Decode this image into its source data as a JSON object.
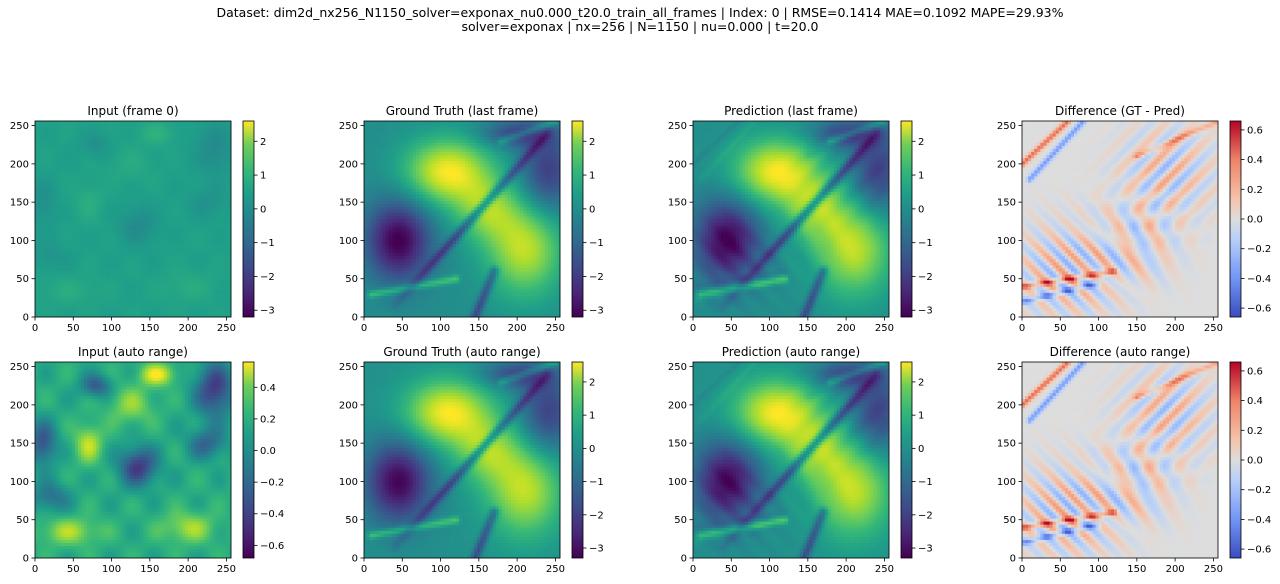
{
  "figure": {
    "title_line1": "Dataset: dim2d_nx256_N1150_solver=exponax_nu0.000_t20.0_train_all_frames | Index: 0 | RMSE=0.1414  MAE=0.1092  MAPE=29.93%",
    "title_line2": "solver=exponax | nx=256 | N=1150 | nu=0.000 | t=20.0"
  },
  "chart_data": [
    {
      "type": "heatmap",
      "title": "Input (frame 0)",
      "colormap": "viridis",
      "field": "input",
      "xlim": [
        0,
        256
      ],
      "ylim": [
        0,
        256
      ],
      "xticks": [
        0,
        50,
        100,
        150,
        200,
        250
      ],
      "yticks": [
        0,
        50,
        100,
        150,
        200,
        250
      ],
      "clim": [
        -3.2,
        2.6
      ],
      "cbar_ticks": [
        2,
        1,
        0,
        -1,
        -2,
        -3
      ],
      "cbar_labels": [
        "2",
        "1",
        "0",
        "−1",
        "−2",
        "−3"
      ]
    },
    {
      "type": "heatmap",
      "title": "Ground Truth (last frame)",
      "colormap": "viridis",
      "field": "truth",
      "xlim": [
        0,
        256
      ],
      "ylim": [
        0,
        256
      ],
      "xticks": [
        0,
        50,
        100,
        150,
        200,
        250
      ],
      "yticks": [
        0,
        50,
        100,
        150,
        200,
        250
      ],
      "clim": [
        -3.2,
        2.6
      ],
      "cbar_ticks": [
        2,
        1,
        0,
        -1,
        -2,
        -3
      ],
      "cbar_labels": [
        "2",
        "1",
        "0",
        "−1",
        "−2",
        "−3"
      ]
    },
    {
      "type": "heatmap",
      "title": "Prediction (last frame)",
      "colormap": "viridis",
      "field": "prediction",
      "xlim": [
        0,
        256
      ],
      "ylim": [
        0,
        256
      ],
      "xticks": [
        0,
        50,
        100,
        150,
        200,
        250
      ],
      "yticks": [
        0,
        50,
        100,
        150,
        200,
        250
      ],
      "clim": [
        -3.2,
        2.6
      ],
      "cbar_ticks": [
        2,
        1,
        0,
        -1,
        -2,
        -3
      ],
      "cbar_labels": [
        "2",
        "1",
        "0",
        "−1",
        "−2",
        "−3"
      ]
    },
    {
      "type": "heatmap",
      "title": "Difference (GT - Pred)",
      "colormap": "coolwarm",
      "field": "difference",
      "xlim": [
        0,
        256
      ],
      "ylim": [
        0,
        256
      ],
      "xticks": [
        0,
        50,
        100,
        150,
        200,
        250
      ],
      "yticks": [
        0,
        50,
        100,
        150,
        200,
        250
      ],
      "clim": [
        -0.66,
        0.66
      ],
      "cbar_ticks": [
        0.6,
        0.4,
        0.2,
        0.0,
        -0.2,
        -0.4,
        -0.6
      ],
      "cbar_labels": [
        "0.6",
        "0.4",
        "0.2",
        "0.0",
        "−0.2",
        "−0.4",
        "−0.6"
      ]
    },
    {
      "type": "heatmap",
      "title": "Input (auto range)",
      "colormap": "viridis",
      "field": "input_auto",
      "xlim": [
        0,
        256
      ],
      "ylim": [
        0,
        256
      ],
      "xticks": [
        0,
        50,
        100,
        150,
        200,
        250
      ],
      "yticks": [
        0,
        50,
        100,
        150,
        200,
        250
      ],
      "clim": [
        -0.68,
        0.56
      ],
      "cbar_ticks": [
        0.4,
        0.2,
        0.0,
        -0.2,
        -0.4,
        -0.6
      ],
      "cbar_labels": [
        "0.4",
        "0.2",
        "0.0",
        "−0.2",
        "−0.4",
        "−0.6"
      ]
    },
    {
      "type": "heatmap",
      "title": "Ground Truth (auto range)",
      "colormap": "viridis",
      "field": "truth",
      "xlim": [
        0,
        256
      ],
      "ylim": [
        0,
        256
      ],
      "xticks": [
        0,
        50,
        100,
        150,
        200,
        250
      ],
      "yticks": [
        0,
        50,
        100,
        150,
        200,
        250
      ],
      "clim": [
        -3.3,
        2.6
      ],
      "cbar_ticks": [
        2,
        1,
        0,
        -1,
        -2,
        -3
      ],
      "cbar_labels": [
        "2",
        "1",
        "0",
        "−1",
        "−2",
        "−3"
      ]
    },
    {
      "type": "heatmap",
      "title": "Prediction (auto range)",
      "colormap": "viridis",
      "field": "prediction",
      "xlim": [
        0,
        256
      ],
      "ylim": [
        0,
        256
      ],
      "xticks": [
        0,
        50,
        100,
        150,
        200,
        250
      ],
      "yticks": [
        0,
        50,
        100,
        150,
        200,
        250
      ],
      "clim": [
        -3.3,
        2.6
      ],
      "cbar_ticks": [
        2,
        1,
        0,
        -1,
        -2,
        -3
      ],
      "cbar_labels": [
        "2",
        "1",
        "0",
        "−1",
        "−2",
        "−3"
      ]
    },
    {
      "type": "heatmap",
      "title": "Difference (auto range)",
      "colormap": "coolwarm",
      "field": "difference",
      "xlim": [
        0,
        256
      ],
      "ylim": [
        0,
        256
      ],
      "xticks": [
        0,
        50,
        100,
        150,
        200,
        250
      ],
      "yticks": [
        0,
        50,
        100,
        150,
        200,
        250
      ],
      "clim": [
        -0.66,
        0.66
      ],
      "cbar_ticks": [
        0.6,
        0.4,
        0.2,
        0.0,
        -0.2,
        -0.4,
        -0.6
      ],
      "cbar_labels": [
        "0.6",
        "0.4",
        "0.2",
        "0.0",
        "−0.2",
        "−0.4",
        "−0.6"
      ]
    }
  ]
}
